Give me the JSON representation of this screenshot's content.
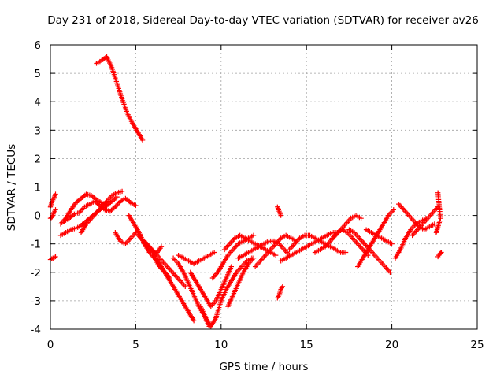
{
  "chart_data": {
    "type": "scatter",
    "title": "Day 231 of 2018, Sidereal Day-to-day VTEC variation (SDTVAR) for receiver av26",
    "xlabel": "GPS time / hours",
    "ylabel": "SDTVAR / TECUs",
    "xlim": [
      0,
      25
    ],
    "ylim": [
      -4,
      6
    ],
    "xticks": [
      0,
      5,
      10,
      15,
      20,
      25
    ],
    "yticks": [
      -4,
      -3,
      -2,
      -1,
      0,
      1,
      2,
      3,
      4,
      5,
      6
    ],
    "grid": true,
    "marker": "+",
    "series": [
      {
        "name": "SDTVAR",
        "color": "#ff0000",
        "tracks": [
          {
            "x": [
              0.0,
              0.1,
              0.2,
              0.3
            ],
            "y": [
              0.3,
              0.5,
              0.6,
              0.75
            ]
          },
          {
            "x": [
              0.0,
              0.1,
              0.2,
              0.3
            ],
            "y": [
              -0.1,
              -0.05,
              0.1,
              0.2
            ]
          },
          {
            "x": [
              0.0,
              0.15,
              0.3
            ],
            "y": [
              -1.55,
              -1.5,
              -1.45
            ]
          },
          {
            "x": [
              2.7,
              3.0,
              3.3,
              3.6,
              3.9,
              4.2,
              4.5,
              4.8,
              5.1,
              5.4
            ],
            "y": [
              5.35,
              5.45,
              5.58,
              5.2,
              4.65,
              4.1,
              3.6,
              3.25,
              2.95,
              2.65
            ]
          },
          {
            "x": [
              0.6,
              0.9,
              1.2,
              1.5,
              1.8,
              2.1,
              2.4,
              2.7,
              3.0,
              3.3
            ],
            "y": [
              -0.3,
              -0.1,
              0.2,
              0.45,
              0.6,
              0.75,
              0.7,
              0.55,
              0.45,
              0.35
            ]
          },
          {
            "x": [
              0.8,
              1.1,
              1.4,
              1.7,
              2.0,
              2.3,
              2.6,
              2.9,
              3.2,
              3.5,
              3.8,
              4.1,
              4.4,
              4.7,
              5.0
            ],
            "y": [
              -0.2,
              -0.1,
              0.05,
              0.1,
              0.3,
              0.4,
              0.5,
              0.35,
              0.2,
              0.15,
              0.3,
              0.5,
              0.6,
              0.45,
              0.35
            ]
          },
          {
            "x": [
              0.6,
              0.9,
              1.2,
              1.5,
              1.8,
              2.1,
              2.4,
              2.7,
              3.0,
              3.3,
              3.6,
              3.9
            ],
            "y": [
              -0.7,
              -0.6,
              -0.5,
              -0.45,
              -0.35,
              -0.2,
              -0.05,
              0.1,
              0.25,
              0.35,
              0.5,
              0.65
            ]
          },
          {
            "x": [
              1.8,
              2.1,
              2.4,
              2.7,
              3.0,
              3.3,
              3.6,
              3.9,
              4.2
            ],
            "y": [
              -0.6,
              -0.3,
              -0.1,
              0.1,
              0.3,
              0.5,
              0.7,
              0.8,
              0.85
            ]
          },
          {
            "x": [
              3.8,
              4.1,
              4.4,
              4.7,
              5.0,
              5.3,
              5.6,
              5.9,
              6.2,
              6.5
            ],
            "y": [
              -0.6,
              -0.9,
              -1.0,
              -0.8,
              -0.6,
              -0.8,
              -1.0,
              -1.2,
              -1.35,
              -1.1
            ]
          },
          {
            "x": [
              4.6,
              4.9,
              5.2,
              5.5,
              5.8,
              6.1,
              6.4,
              6.7,
              7.0
            ],
            "y": [
              0.0,
              -0.3,
              -0.6,
              -1.0,
              -1.3,
              -1.5,
              -1.8,
              -2.0,
              -2.2
            ]
          },
          {
            "x": [
              5.5,
              5.8,
              6.1,
              6.4,
              6.7,
              7.0,
              7.3,
              7.6,
              7.9
            ],
            "y": [
              -0.9,
              -1.1,
              -1.3,
              -1.5,
              -1.7,
              -1.9,
              -2.1,
              -2.3,
              -2.5
            ]
          },
          {
            "x": [
              6.0,
              6.3,
              6.6,
              6.9,
              7.2,
              7.5,
              7.8,
              8.1,
              8.4
            ],
            "y": [
              -1.4,
              -1.6,
              -1.9,
              -2.2,
              -2.5,
              -2.8,
              -3.1,
              -3.4,
              -3.7
            ]
          },
          {
            "x": [
              7.2,
              7.5,
              7.8,
              8.1,
              8.4,
              8.7,
              9.0,
              9.3
            ],
            "y": [
              -1.5,
              -1.7,
              -2.0,
              -2.4,
              -2.8,
              -3.2,
              -3.5,
              -3.9
            ]
          },
          {
            "x": [
              7.5,
              7.8,
              8.1,
              8.4,
              8.7,
              9.0,
              9.3,
              9.6
            ],
            "y": [
              -1.4,
              -1.5,
              -1.6,
              -1.7,
              -1.6,
              -1.5,
              -1.4,
              -1.3
            ]
          },
          {
            "x": [
              8.2,
              8.5,
              8.8,
              9.1,
              9.4,
              9.7,
              10.0,
              10.3,
              10.6
            ],
            "y": [
              -2.0,
              -2.3,
              -2.6,
              -2.9,
              -3.2,
              -3.0,
              -2.6,
              -2.2,
              -1.8
            ]
          },
          {
            "x": [
              8.8,
              9.1,
              9.4,
              9.7,
              10.0,
              10.3,
              10.6,
              10.9,
              11.2,
              11.5,
              11.8
            ],
            "y": [
              -3.2,
              -3.6,
              -3.9,
              -3.6,
              -3.0,
              -2.6,
              -2.3,
              -2.0,
              -1.8,
              -1.6,
              -1.5
            ]
          },
          {
            "x": [
              9.5,
              9.8,
              10.1,
              10.4,
              10.7,
              11.0,
              11.3,
              11.6,
              11.9
            ],
            "y": [
              -2.2,
              -2.0,
              -1.7,
              -1.4,
              -1.2,
              -1.0,
              -0.9,
              -0.8,
              -0.7
            ]
          },
          {
            "x": [
              10.2,
              10.5,
              10.8,
              11.1,
              11.4,
              11.7,
              12.0,
              12.3,
              12.6,
              12.9,
              13.2
            ],
            "y": [
              -1.2,
              -1.0,
              -0.8,
              -0.7,
              -0.8,
              -0.9,
              -1.0,
              -1.1,
              -1.2,
              -1.3,
              -1.4
            ]
          },
          {
            "x": [
              10.4,
              10.7,
              11.0,
              11.3,
              11.6,
              11.9
            ],
            "y": [
              -3.2,
              -2.8,
              -2.4,
              -2.0,
              -1.7,
              -1.5
            ]
          },
          {
            "x": [
              11.0,
              11.3,
              11.6,
              11.9,
              12.2,
              12.5,
              12.8,
              13.1,
              13.4,
              13.7,
              14.0
            ],
            "y": [
              -1.5,
              -1.4,
              -1.3,
              -1.2,
              -1.1,
              -1.0,
              -0.9,
              -0.9,
              -1.0,
              -1.2,
              -1.4
            ]
          },
          {
            "x": [
              12.0,
              12.3,
              12.6,
              12.9,
              13.2,
              13.5,
              13.8,
              14.1,
              14.4
            ],
            "y": [
              -1.8,
              -1.6,
              -1.4,
              -1.2,
              -1.0,
              -0.8,
              -0.7,
              -0.8,
              -0.9
            ]
          },
          {
            "x": [
              13.3,
              13.4,
              13.5
            ],
            "y": [
              0.3,
              0.15,
              0.0
            ]
          },
          {
            "x": [
              13.3,
              13.4,
              13.5,
              13.6
            ],
            "y": [
              -2.9,
              -2.8,
              -2.6,
              -2.5
            ]
          },
          {
            "x": [
              13.5,
              13.8,
              14.1,
              14.4,
              14.7,
              15.0,
              15.3,
              15.6,
              15.9,
              16.2,
              16.5,
              16.8
            ],
            "y": [
              -1.6,
              -1.5,
              -1.4,
              -1.3,
              -1.2,
              -1.1,
              -1.0,
              -0.9,
              -0.8,
              -0.7,
              -0.6,
              -0.6
            ]
          },
          {
            "x": [
              14.0,
              14.3,
              14.6,
              14.9,
              15.2,
              15.5,
              15.8,
              16.1,
              16.4,
              16.7,
              17.0,
              17.3
            ],
            "y": [
              -1.2,
              -1.0,
              -0.8,
              -0.7,
              -0.7,
              -0.8,
              -0.9,
              -1.0,
              -1.1,
              -1.2,
              -1.3,
              -1.3
            ]
          },
          {
            "x": [
              15.5,
              15.8,
              16.1,
              16.4,
              16.7,
              17.0,
              17.3,
              17.6,
              17.9,
              18.2
            ],
            "y": [
              -1.3,
              -1.2,
              -1.1,
              -0.9,
              -0.7,
              -0.5,
              -0.3,
              -0.1,
              0.0,
              -0.1
            ]
          },
          {
            "x": [
              16.5,
              16.8,
              17.1,
              17.4,
              17.7,
              18.0,
              18.3,
              18.6
            ],
            "y": [
              -0.8,
              -0.6,
              -0.5,
              -0.6,
              -0.8,
              -1.0,
              -1.2,
              -1.4
            ]
          },
          {
            "x": [
              17.5,
              17.8,
              18.1,
              18.4,
              18.7,
              19.0,
              19.3,
              19.6,
              19.9
            ],
            "y": [
              -0.5,
              -0.6,
              -0.8,
              -1.0,
              -1.2,
              -1.4,
              -1.6,
              -1.8,
              -2.0
            ]
          },
          {
            "x": [
              18.0,
              18.3,
              18.6,
              18.9,
              19.2,
              19.5,
              19.8,
              20.1
            ],
            "y": [
              -1.8,
              -1.5,
              -1.2,
              -0.9,
              -0.6,
              -0.3,
              0.0,
              0.2
            ]
          },
          {
            "x": [
              18.5,
              18.8,
              19.1,
              19.4,
              19.7,
              20.0
            ],
            "y": [
              -0.5,
              -0.6,
              -0.7,
              -0.8,
              -0.9,
              -1.0
            ]
          },
          {
            "x": [
              20.2,
              20.5,
              20.8,
              21.1,
              21.4,
              21.7,
              22.0
            ],
            "y": [
              -1.5,
              -1.2,
              -0.8,
              -0.5,
              -0.3,
              -0.2,
              -0.1
            ]
          },
          {
            "x": [
              20.4,
              20.7,
              21.0,
              21.3,
              21.6,
              21.9,
              22.2,
              22.5
            ],
            "y": [
              0.4,
              0.2,
              0.0,
              -0.2,
              -0.4,
              -0.5,
              -0.4,
              -0.3
            ]
          },
          {
            "x": [
              21.2,
              21.5,
              21.8,
              22.1,
              22.4,
              22.7
            ],
            "y": [
              -0.7,
              -0.5,
              -0.3,
              -0.1,
              0.1,
              0.3
            ]
          },
          {
            "x": [
              22.7,
              22.75,
              22.8,
              22.85
            ],
            "y": [
              0.8,
              0.5,
              0.2,
              -0.1
            ]
          },
          {
            "x": [
              22.7,
              22.8,
              22.9
            ],
            "y": [
              -1.45,
              -1.35,
              -1.3
            ]
          },
          {
            "x": [
              22.6,
              22.7,
              22.8
            ],
            "y": [
              -0.6,
              -0.4,
              -0.2
            ]
          }
        ]
      }
    ]
  }
}
